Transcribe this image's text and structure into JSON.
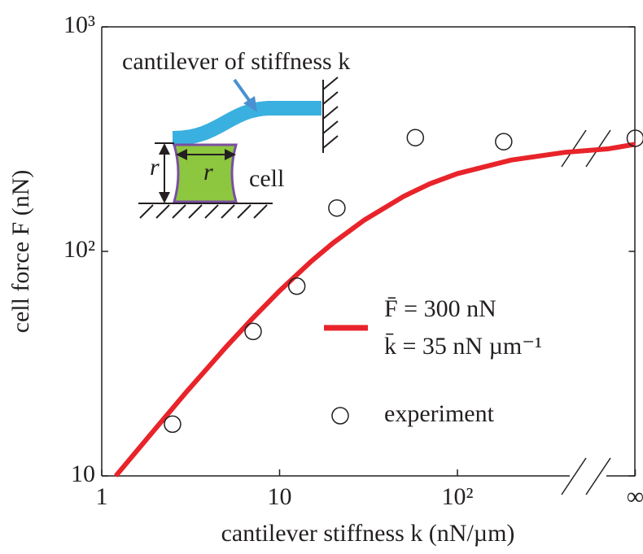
{
  "chart_data": {
    "type": "line-scatter",
    "ylabel": "cell force F (nN)",
    "xlabel": "cantilever stiffness k (nN/µm)",
    "log_x": true,
    "log_y": true,
    "xlim": [
      1,
      1000
    ],
    "ylim": [
      10,
      1000
    ],
    "xticks": [
      1,
      10,
      {
        "value": 100,
        "label": "10²"
      },
      {
        "value": 1000,
        "label": "∞"
      }
    ],
    "yticks": [
      10,
      {
        "value": 100,
        "label": "10²"
      },
      {
        "value": 1000,
        "label": "10³"
      }
    ],
    "series": [
      {
        "name": [
          "F̄ = 300 nN",
          "k̄ = 35 nN µm⁻¹"
        ],
        "kind": "line",
        "color": "#e8242a",
        "x": [
          1.2,
          2,
          3,
          5,
          7,
          10,
          15,
          20,
          30,
          50,
          70,
          100,
          200,
          400,
          700,
          1000
        ],
        "values": [
          10,
          16.2,
          23.7,
          37.5,
          50,
          66.7,
          90,
          109,
          138,
          176,
          200,
          222,
          255,
          276,
          286,
          300
        ]
      },
      {
        "name": "experiment",
        "kind": "scatter",
        "color": "#231f20",
        "x": [
          2.5,
          7.1,
          12.5,
          21,
          58,
          182,
          1000
        ],
        "values": [
          17,
          44,
          70,
          156,
          321,
          308,
          319
        ]
      }
    ],
    "annotations": {
      "cantilever": "cantilever of stiffness k",
      "height": "r",
      "width": "r",
      "cell": "cell"
    }
  }
}
